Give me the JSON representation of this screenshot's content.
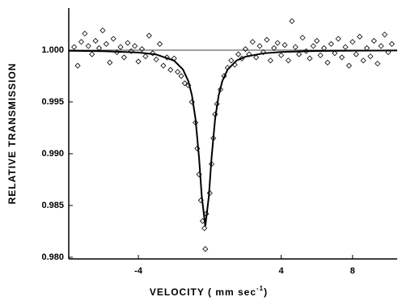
{
  "chart_data": {
    "type": "scatter",
    "xlabel": "VELOCITY ( mm sec",
    "xlabel_superscript": "-1",
    "xlabel_suffix": ")",
    "ylabel": "RELATIVE TRANSMISSION",
    "xlim": [
      -7.9,
      10.5
    ],
    "ylim": [
      0.97984,
      1.00406
    ],
    "xticks": [
      -4,
      4,
      8
    ],
    "yticks": [
      {
        "value": 0.98,
        "label": "0.980"
      },
      0.985,
      {
        "value": 0.99,
        "label": "0.990"
      },
      0.995,
      {
        "value": 1,
        "label": "1.000"
      }
    ],
    "reference_line": 1,
    "points": {
      "color": "#000",
      "x": [
        -7.6,
        -7.4,
        -7.2,
        -7.0,
        -6.8,
        -6.6,
        -6.4,
        -6.2,
        -6.0,
        -5.8,
        -5.6,
        -5.4,
        -5.2,
        -5.0,
        -4.8,
        -4.6,
        -4.4,
        -4.2,
        -4.0,
        -3.8,
        -3.6,
        -3.4,
        -3.2,
        -3.0,
        -2.8,
        -2.6,
        -2.4,
        -2.2,
        -2.0,
        -1.8,
        -1.6,
        -1.4,
        -1.2,
        -1.0,
        -0.8,
        -0.7,
        -0.6,
        -0.5,
        -0.4,
        -0.3,
        -0.25,
        -0.2,
        0.0,
        0.1,
        0.2,
        0.3,
        0.4,
        0.6,
        0.8,
        1.0,
        1.2,
        1.4,
        1.6,
        1.8,
        2.0,
        2.2,
        2.4,
        2.6,
        2.8,
        3.0,
        3.2,
        3.4,
        3.6,
        3.8,
        4.0,
        4.2,
        4.4,
        4.6,
        4.8,
        5.0,
        5.2,
        5.4,
        5.6,
        5.8,
        6.0,
        6.2,
        6.4,
        6.6,
        6.8,
        7.0,
        7.2,
        7.4,
        7.6,
        7.8,
        8.0,
        8.2,
        8.4,
        8.6,
        8.8,
        9.0,
        9.2,
        9.4,
        9.6,
        9.8,
        10.0,
        10.2
      ],
      "values": [
        1.0003,
        0.9985,
        1.0008,
        1.0016,
        1.0004,
        0.9996,
        1.0009,
        1.0002,
        1.0019,
        1.0006,
        0.9988,
        1.0011,
        0.9998,
        1.0003,
        0.9993,
        1.0007,
        0.9999,
        1.0004,
        0.9989,
        1.0001,
        0.9994,
        1.0014,
        0.9997,
        0.9991,
        1.0006,
        0.9985,
        0.9993,
        0.9981,
        0.9992,
        0.9979,
        0.9975,
        0.9968,
        0.9966,
        0.995,
        0.993,
        0.9905,
        0.988,
        0.9855,
        0.9835,
        0.9828,
        0.9808,
        0.9842,
        0.9862,
        0.989,
        0.9915,
        0.9938,
        0.9948,
        0.9962,
        0.9975,
        0.9983,
        0.999,
        0.9986,
        0.9996,
        0.9992,
        1.0001,
        0.9996,
        1.0008,
        0.9993,
        1.0004,
        0.9998,
        1.001,
        0.999,
        1.0002,
        1.0007,
        0.9995,
        1.0005,
        0.999,
        1.0028,
        1.0003,
        0.9996,
        1.0012,
        0.9999,
        0.9992,
        1.0004,
        1.0009,
        0.9995,
        1.0002,
        0.9988,
        1.0006,
        0.9997,
        1.0011,
        0.9993,
        1.0003,
        0.9985,
        1.0008,
        0.9996,
        1.0013,
        0.999,
        1.0002,
        0.9994,
        1.0009,
        0.9987,
        1.0004,
        1.0015,
        0.9998,
        1.0006
      ]
    },
    "fit": {
      "color": "#000",
      "x": [
        -7.9,
        -6,
        -4,
        -3,
        -2,
        -1.5,
        -1.2,
        -1,
        -0.8,
        -0.6,
        -0.45,
        -0.25,
        -0.05,
        0.1,
        0.3,
        0.5,
        0.7,
        1,
        1.5,
        2,
        3,
        4,
        6,
        8,
        10.5
      ],
      "values": [
        0.99994,
        0.9999,
        0.99977,
        0.99958,
        0.99899,
        0.99813,
        0.997,
        0.99565,
        0.99337,
        0.9896,
        0.98591,
        0.983,
        0.98591,
        0.9896,
        0.99337,
        0.99565,
        0.997,
        0.99813,
        0.99899,
        0.99937,
        0.99969,
        0.99982,
        0.99992,
        0.99995,
        0.99997
      ]
    }
  }
}
